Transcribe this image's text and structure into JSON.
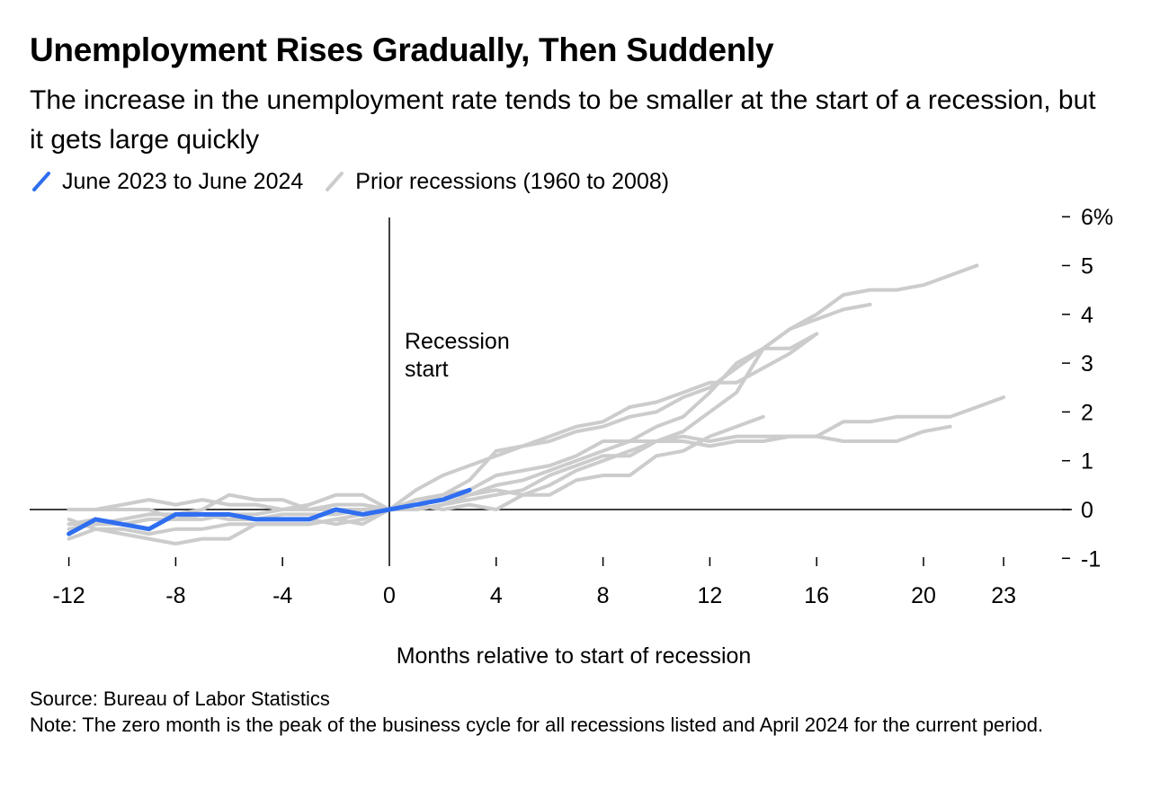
{
  "title": "Unemployment Rises Gradually, Then Suddenly",
  "subtitle": "The increase in the unemployment rate tends to be smaller at the start of a recession, but it gets large quickly",
  "legend": [
    {
      "label": "June 2023 to June 2024",
      "color": "#2f6ef0"
    },
    {
      "label": "Prior recessions (1960 to 2008)",
      "color": "#cccccc"
    }
  ],
  "annotation": [
    "Recession",
    "start"
  ],
  "footer": {
    "source": "Source: Bureau of Labor Statistics",
    "note": "Note: The zero month is the peak of the business cycle for all recessions listed and April 2024 for the current period."
  },
  "chart_data": {
    "type": "line",
    "xlabel": "Months relative to start of recession",
    "ylabel": "",
    "xlim": [
      -12,
      23
    ],
    "ylim": [
      -1,
      6
    ],
    "x_ticks": [
      "-12",
      "-8",
      "-4",
      "0",
      "4",
      "8",
      "12",
      "16",
      "20",
      "23"
    ],
    "y_ticks": [
      "6%",
      "5",
      "4",
      "3",
      "2",
      "1",
      "0",
      "-1"
    ],
    "grid": false,
    "legend_position": "top-left",
    "series": [
      {
        "name": "June 2023 to June 2024",
        "color": "#2f6ef0",
        "emphasis": true,
        "points": [
          [
            -12,
            -0.5
          ],
          [
            -11,
            -0.2
          ],
          [
            -10,
            -0.3
          ],
          [
            -9,
            -0.4
          ],
          [
            -8,
            -0.1
          ],
          [
            -7,
            -0.1
          ],
          [
            -6,
            -0.1
          ],
          [
            -5,
            -0.2
          ],
          [
            -4,
            -0.2
          ],
          [
            -3,
            -0.2
          ],
          [
            -2,
            0.0
          ],
          [
            -1,
            -0.1
          ],
          [
            0,
            0.0
          ],
          [
            1,
            0.1
          ],
          [
            2,
            0.2
          ],
          [
            3,
            0.4
          ]
        ]
      },
      {
        "color": "#cccccc",
        "points": [
          [
            -12,
            -0.3
          ],
          [
            -11,
            -0.3
          ],
          [
            -10,
            -0.2
          ],
          [
            -9,
            -0.1
          ],
          [
            -8,
            -0.1
          ],
          [
            -7,
            0.0
          ],
          [
            -6,
            0.3
          ],
          [
            -5,
            0.2
          ],
          [
            -4,
            0.2
          ],
          [
            -3,
            0.0
          ],
          [
            -2,
            0.1
          ],
          [
            -1,
            0.1
          ],
          [
            0,
            0.0
          ],
          [
            1,
            0.2
          ],
          [
            2,
            0.3
          ],
          [
            3,
            0.6
          ],
          [
            4,
            1.2
          ],
          [
            5,
            1.3
          ],
          [
            6,
            1.5
          ],
          [
            7,
            1.7
          ],
          [
            8,
            1.8
          ],
          [
            9,
            2.1
          ],
          [
            10,
            2.2
          ],
          [
            11,
            2.4
          ],
          [
            12,
            2.6
          ],
          [
            13,
            2.6
          ],
          [
            14,
            2.9
          ],
          [
            15,
            3.2
          ],
          [
            16,
            3.6
          ]
        ]
      },
      {
        "color": "#cccccc",
        "points": [
          [
            -12,
            -0.2
          ],
          [
            -11,
            -0.4
          ],
          [
            -10,
            -0.5
          ],
          [
            -9,
            -0.6
          ],
          [
            -8,
            -0.7
          ],
          [
            -7,
            -0.6
          ],
          [
            -6,
            -0.6
          ],
          [
            -5,
            -0.3
          ],
          [
            -4,
            -0.3
          ],
          [
            -3,
            -0.3
          ],
          [
            -2,
            -0.2
          ],
          [
            -1,
            -0.1
          ],
          [
            0,
            0.0
          ],
          [
            1,
            0.4
          ],
          [
            2,
            0.7
          ],
          [
            3,
            0.9
          ],
          [
            4,
            1.1
          ],
          [
            5,
            1.3
          ],
          [
            6,
            1.4
          ],
          [
            7,
            1.6
          ],
          [
            8,
            1.7
          ],
          [
            9,
            1.9
          ],
          [
            10,
            2.0
          ],
          [
            11,
            2.3
          ],
          [
            12,
            2.5
          ],
          [
            13,
            2.9
          ],
          [
            14,
            3.3
          ],
          [
            15,
            3.7
          ],
          [
            16,
            4.0
          ],
          [
            17,
            4.4
          ],
          [
            18,
            4.5
          ],
          [
            19,
            4.5
          ],
          [
            20,
            4.6
          ],
          [
            21,
            4.8
          ],
          [
            22,
            5.0
          ]
        ]
      },
      {
        "color": "#cccccc",
        "points": [
          [
            -12,
            0.0
          ],
          [
            -11,
            0.0
          ],
          [
            -10,
            0.1
          ],
          [
            -9,
            0.2
          ],
          [
            -8,
            0.1
          ],
          [
            -7,
            0.2
          ],
          [
            -6,
            0.1
          ],
          [
            -5,
            0.1
          ],
          [
            -4,
            0.0
          ],
          [
            -3,
            0.1
          ],
          [
            -2,
            0.3
          ],
          [
            -1,
            0.3
          ],
          [
            0,
            0.0
          ],
          [
            1,
            0.1
          ],
          [
            2,
            0.3
          ],
          [
            3,
            0.4
          ],
          [
            4,
            0.7
          ],
          [
            5,
            0.8
          ],
          [
            6,
            0.9
          ],
          [
            7,
            1.1
          ],
          [
            8,
            1.4
          ],
          [
            9,
            1.4
          ],
          [
            10,
            1.4
          ],
          [
            11,
            1.4
          ],
          [
            12,
            1.3
          ],
          [
            13,
            1.4
          ],
          [
            14,
            1.4
          ],
          [
            15,
            1.5
          ],
          [
            16,
            1.5
          ],
          [
            17,
            1.8
          ],
          [
            18,
            1.8
          ],
          [
            19,
            1.9
          ],
          [
            20,
            1.9
          ],
          [
            21,
            1.9
          ],
          [
            22,
            2.1
          ],
          [
            23,
            2.3
          ]
        ]
      },
      {
        "color": "#cccccc",
        "points": [
          [
            -12,
            -0.4
          ],
          [
            -11,
            -0.3
          ],
          [
            -10,
            -0.3
          ],
          [
            -9,
            -0.2
          ],
          [
            -8,
            -0.2
          ],
          [
            -7,
            -0.2
          ],
          [
            -6,
            -0.1
          ],
          [
            -5,
            -0.1
          ],
          [
            -4,
            0.0
          ],
          [
            -3,
            0.0
          ],
          [
            -2,
            0.0
          ],
          [
            -1,
            0.0
          ],
          [
            0,
            0.0
          ],
          [
            1,
            0.0
          ],
          [
            2,
            0.1
          ],
          [
            3,
            0.2
          ],
          [
            4,
            0.3
          ],
          [
            5,
            0.4
          ],
          [
            6,
            0.7
          ],
          [
            7,
            0.9
          ],
          [
            8,
            1.1
          ],
          [
            9,
            1.1
          ],
          [
            10,
            1.4
          ],
          [
            11,
            1.5
          ],
          [
            12,
            1.4
          ],
          [
            13,
            1.5
          ],
          [
            14,
            1.5
          ],
          [
            15,
            1.5
          ],
          [
            16,
            1.5
          ],
          [
            17,
            1.4
          ],
          [
            18,
            1.4
          ],
          [
            19,
            1.4
          ],
          [
            20,
            1.6
          ],
          [
            21,
            1.7
          ]
        ]
      },
      {
        "color": "#cccccc",
        "points": [
          [
            -12,
            0.0
          ],
          [
            -11,
            0.0
          ],
          [
            -10,
            0.0
          ],
          [
            -9,
            0.0
          ],
          [
            -8,
            -0.2
          ],
          [
            -7,
            -0.1
          ],
          [
            -6,
            -0.2
          ],
          [
            -5,
            -0.2
          ],
          [
            -4,
            -0.2
          ],
          [
            -3,
            -0.2
          ],
          [
            -2,
            -0.3
          ],
          [
            -1,
            -0.2
          ],
          [
            0,
            0.0
          ],
          [
            1,
            0.1
          ],
          [
            2,
            0.0
          ],
          [
            3,
            0.1
          ],
          [
            4,
            0.0
          ],
          [
            5,
            0.3
          ],
          [
            6,
            0.5
          ],
          [
            7,
            0.8
          ],
          [
            8,
            1.0
          ],
          [
            9,
            1.2
          ],
          [
            10,
            1.4
          ],
          [
            11,
            1.6
          ],
          [
            12,
            2.0
          ],
          [
            13,
            2.4
          ],
          [
            14,
            3.3
          ],
          [
            15,
            3.3
          ],
          [
            16,
            3.6
          ]
        ]
      },
      {
        "color": "#cccccc",
        "points": [
          [
            -12,
            -0.6
          ],
          [
            -11,
            -0.4
          ],
          [
            -10,
            -0.4
          ],
          [
            -9,
            -0.5
          ],
          [
            -8,
            -0.4
          ],
          [
            -7,
            -0.4
          ],
          [
            -6,
            -0.3
          ],
          [
            -5,
            -0.3
          ],
          [
            -4,
            -0.3
          ],
          [
            -3,
            -0.3
          ],
          [
            -2,
            -0.2
          ],
          [
            -1,
            -0.3
          ],
          [
            0,
            0.0
          ],
          [
            1,
            0.2
          ],
          [
            2,
            0.3
          ],
          [
            3,
            0.3
          ],
          [
            4,
            0.4
          ],
          [
            5,
            0.3
          ],
          [
            6,
            0.3
          ],
          [
            7,
            0.6
          ],
          [
            8,
            0.7
          ],
          [
            9,
            0.7
          ],
          [
            10,
            1.1
          ],
          [
            11,
            1.2
          ],
          [
            12,
            1.5
          ],
          [
            13,
            1.7
          ],
          [
            14,
            1.9
          ]
        ]
      },
      {
        "color": "#cccccc",
        "points": [
          [
            -12,
            -0.3
          ],
          [
            -11,
            -0.2
          ],
          [
            -10,
            -0.3
          ],
          [
            -9,
            -0.2
          ],
          [
            -8,
            -0.2
          ],
          [
            -7,
            -0.1
          ],
          [
            -6,
            -0.2
          ],
          [
            -5,
            -0.2
          ],
          [
            -4,
            -0.1
          ],
          [
            -3,
            -0.1
          ],
          [
            -2,
            -0.1
          ],
          [
            -1,
            0.0
          ],
          [
            0,
            0.0
          ],
          [
            1,
            0.0
          ],
          [
            2,
            0.1
          ],
          [
            3,
            0.3
          ],
          [
            4,
            0.5
          ],
          [
            5,
            0.6
          ],
          [
            6,
            0.8
          ],
          [
            7,
            1.0
          ],
          [
            8,
            1.2
          ],
          [
            9,
            1.4
          ],
          [
            10,
            1.7
          ],
          [
            11,
            1.9
          ],
          [
            12,
            2.4
          ],
          [
            13,
            3.0
          ],
          [
            14,
            3.3
          ],
          [
            15,
            3.7
          ],
          [
            16,
            3.9
          ],
          [
            17,
            4.1
          ],
          [
            18,
            4.2
          ]
        ]
      }
    ]
  }
}
